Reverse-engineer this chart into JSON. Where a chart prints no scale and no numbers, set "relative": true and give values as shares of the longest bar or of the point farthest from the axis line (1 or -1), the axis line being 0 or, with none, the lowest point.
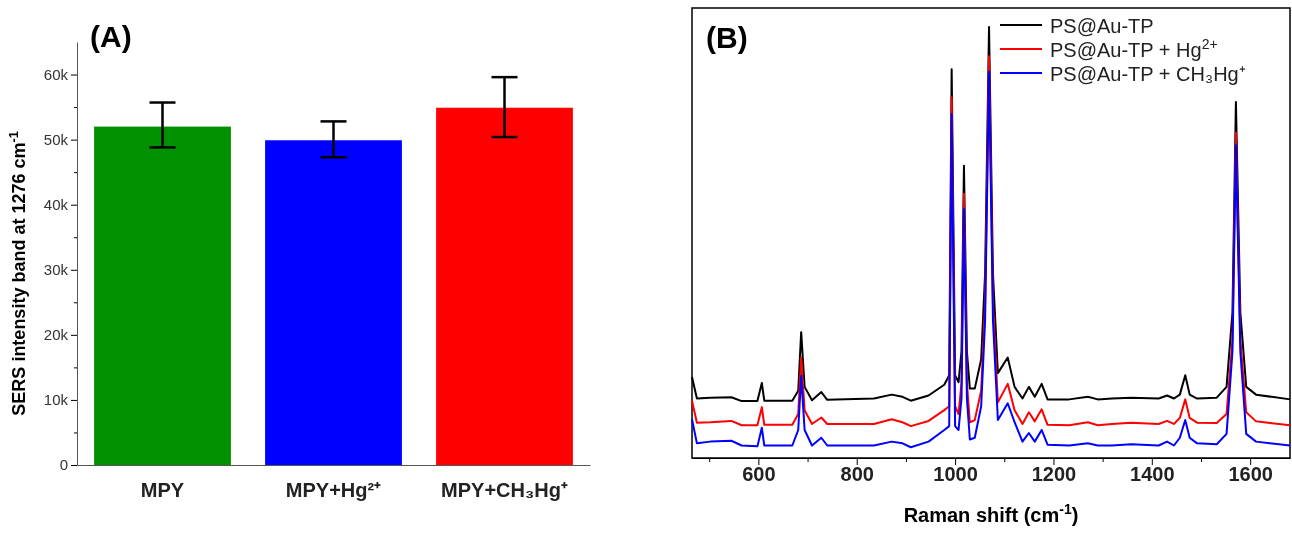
{
  "chart_data": [
    {
      "type": "bar",
      "title": "(A)",
      "ylabel": "SERS intensity band at 1276 cm$^{-1}$",
      "categories": [
        "MPY",
        "MPY+Hg²⁺",
        "MPY+CH₃Hg⁺"
      ],
      "values": [
        52000,
        49900,
        54900
      ],
      "colors": [
        "#009000",
        "#0000ff",
        "#ff0000"
      ],
      "errors": [
        [
          48800,
          55700
        ],
        [
          47300,
          52800
        ],
        [
          50400,
          59600
        ]
      ],
      "ylim": [
        0,
        65000
      ],
      "yticks": [
        0,
        {
          "value": 5000,
          "label": null
        },
        {
          "value": 10000,
          "label": "10k"
        },
        {
          "value": 15000,
          "label": null
        },
        {
          "value": 20000,
          "label": "20k"
        },
        {
          "value": 25000,
          "label": null
        },
        {
          "value": 30000,
          "label": "30k"
        },
        {
          "value": 35000,
          "label": null
        },
        {
          "value": 40000,
          "label": "40k"
        },
        {
          "value": 45000,
          "label": null
        },
        {
          "value": 50000,
          "label": "50k"
        },
        {
          "value": 55000,
          "label": null
        },
        {
          "value": 60000,
          "label": "60k"
        }
      ],
      "grid": false
    },
    {
      "type": "line",
      "title": "(B)",
      "xlabel": "Raman shift (cm$^{-1}$)",
      "relative": true,
      "xlim": [
        465,
        1681
      ],
      "xticks": [
        {
          "value": 500,
          "label": null
        },
        600,
        {
          "value": 700,
          "label": null
        },
        800,
        {
          "value": 900,
          "label": null
        },
        1000,
        {
          "value": 1100,
          "label": null
        },
        1200,
        {
          "value": 1300,
          "label": null
        },
        1400,
        {
          "value": 1500,
          "label": null
        },
        1600
      ],
      "x": [
        465,
        475,
        502,
        545,
        566,
        598,
        607,
        612,
        669,
        681,
        687,
        694,
        709,
        728,
        740,
        835,
        871,
        893,
        910,
        946,
        978,
        988,
        993,
        1000,
        1007,
        1013,
        1018,
        1024,
        1030,
        1040,
        1053,
        1061,
        1069,
        1077,
        1087,
        1107,
        1121,
        1137,
        1150,
        1162,
        1176,
        1188,
        1232,
        1270,
        1290,
        1319,
        1358,
        1414,
        1431,
        1445,
        1457,
        1468,
        1477,
        1492,
        1532,
        1552,
        1564,
        1571,
        1580,
        1592,
        1612,
        1681
      ],
      "series": [
        {
          "name": "PS@Au-TP",
          "color": "#000000",
          "values": [
            0.188,
            0.138,
            0.14,
            0.141,
            0.132,
            0.132,
            0.174,
            0.133,
            0.133,
            0.156,
            0.292,
            0.165,
            0.134,
            0.153,
            0.135,
            0.138,
            0.147,
            0.142,
            0.133,
            0.145,
            0.17,
            0.192,
            0.902,
            0.192,
            0.176,
            0.247,
            0.678,
            0.247,
            0.161,
            0.161,
            0.229,
            0.428,
            1.0,
            0.428,
            0.197,
            0.233,
            0.165,
            0.138,
            0.165,
            0.142,
            0.172,
            0.136,
            0.136,
            0.142,
            0.136,
            0.138,
            0.14,
            0.138,
            0.145,
            0.138,
            0.147,
            0.192,
            0.147,
            0.138,
            0.14,
            0.165,
            0.338,
            0.826,
            0.338,
            0.165,
            0.147,
            0.136
          ]
        },
        {
          "name": "PS@Au-TP + Hg$^{2+}$",
          "color": "#ff0000",
          "values": [
            0.133,
            0.082,
            0.083,
            0.086,
            0.076,
            0.076,
            0.118,
            0.077,
            0.077,
            0.102,
            0.233,
            0.111,
            0.079,
            0.094,
            0.079,
            0.079,
            0.09,
            0.083,
            0.074,
            0.086,
            0.111,
            0.12,
            0.837,
            0.12,
            0.102,
            0.174,
            0.613,
            0.174,
            0.083,
            0.088,
            0.156,
            0.356,
            0.932,
            0.356,
            0.129,
            0.172,
            0.111,
            0.079,
            0.106,
            0.085,
            0.113,
            0.077,
            0.076,
            0.083,
            0.076,
            0.079,
            0.082,
            0.079,
            0.086,
            0.079,
            0.093,
            0.136,
            0.093,
            0.082,
            0.081,
            0.102,
            0.274,
            0.755,
            0.274,
            0.106,
            0.085,
            0.076
          ]
        },
        {
          "name": "PS@Au-TP + CH₃Hg⁺",
          "color": "#0000ff",
          "values": [
            0.09,
            0.034,
            0.038,
            0.04,
            0.029,
            0.027,
            0.07,
            0.029,
            0.029,
            0.065,
            0.191,
            0.065,
            0.029,
            0.047,
            0.029,
            0.029,
            0.038,
            0.034,
            0.025,
            0.038,
            0.065,
            0.074,
            0.798,
            0.074,
            0.065,
            0.138,
            0.578,
            0.138,
            0.043,
            0.047,
            0.12,
            0.319,
            0.896,
            0.319,
            0.088,
            0.127,
            0.083,
            0.038,
            0.058,
            0.038,
            0.065,
            0.031,
            0.029,
            0.034,
            0.029,
            0.029,
            0.032,
            0.029,
            0.038,
            0.029,
            0.047,
            0.088,
            0.047,
            0.034,
            0.032,
            0.056,
            0.247,
            0.726,
            0.247,
            0.056,
            0.038,
            0.029
          ]
        }
      ],
      "legend": "top right",
      "grid": false
    }
  ]
}
